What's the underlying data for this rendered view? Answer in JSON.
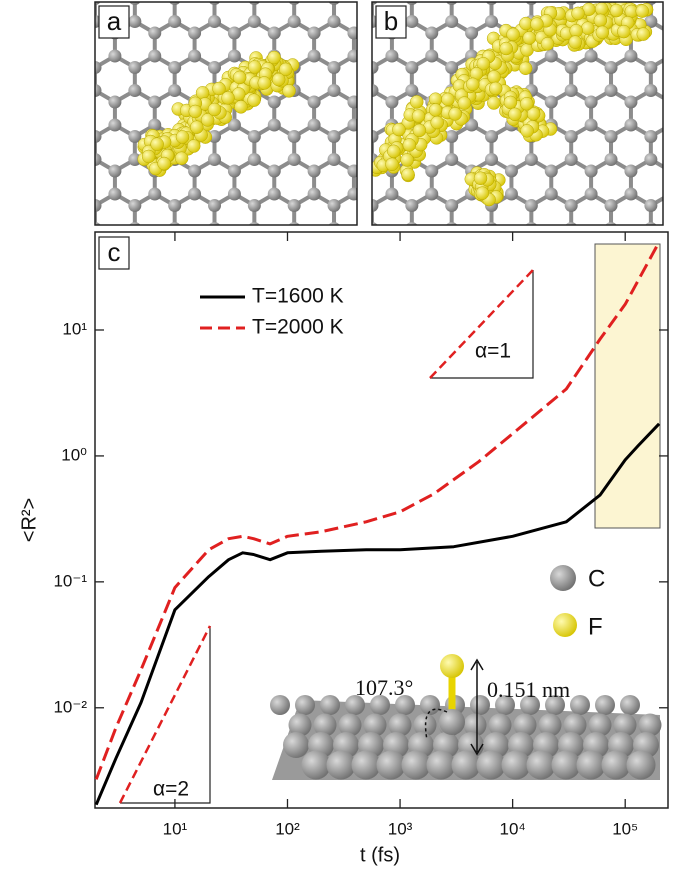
{
  "chart_data": {
    "type": "line",
    "panel_labels": [
      "a",
      "b",
      "c"
    ],
    "xlabel": "t (fs)",
    "ylabel": "<R²>",
    "log_x": true,
    "log_y": true,
    "xlim": [
      1.95,
      240000
    ],
    "ylim": [
      0.0016,
      60
    ],
    "xticks": [
      {
        "value": 10,
        "label": "10¹"
      },
      {
        "value": 100,
        "label": "10²"
      },
      {
        "value": 1000,
        "label": "10³"
      },
      {
        "value": 10000,
        "label": "10⁴"
      },
      {
        "value": 100000,
        "label": "10⁵"
      }
    ],
    "yticks": [
      {
        "value": 0.01,
        "label": "10⁻²"
      },
      {
        "value": 0.1,
        "label": "10⁻¹"
      },
      {
        "value": 1,
        "label": "10⁰"
      },
      {
        "value": 10,
        "label": "10¹"
      }
    ],
    "series": [
      {
        "name": "T=1600 K",
        "color": "#000000",
        "dash": false,
        "x": [
          2,
          3,
          5,
          10,
          20,
          30,
          40,
          50,
          70,
          100,
          200,
          500,
          1000,
          3000,
          10000,
          30000,
          60000,
          100000,
          130000,
          200000
        ],
        "values": [
          0.0017,
          0.004,
          0.011,
          0.06,
          0.11,
          0.15,
          0.17,
          0.165,
          0.15,
          0.17,
          0.175,
          0.18,
          0.18,
          0.19,
          0.23,
          0.3,
          0.49,
          0.93,
          1.2,
          1.8
        ]
      },
      {
        "name": "T=2000 K",
        "color": "#e02020",
        "dash": true,
        "x": [
          2,
          3,
          5,
          10,
          20,
          30,
          40,
          50,
          70,
          100,
          200,
          500,
          1000,
          2000,
          5000,
          10000,
          30000,
          60000,
          100000,
          200000
        ],
        "values": [
          0.0027,
          0.007,
          0.02,
          0.09,
          0.18,
          0.22,
          0.23,
          0.22,
          0.2,
          0.23,
          0.25,
          0.3,
          0.36,
          0.5,
          0.9,
          1.5,
          3.4,
          8.5,
          16,
          50
        ]
      }
    ],
    "annotations": [
      "α=1",
      "α=2"
    ],
    "inset": {
      "legend": [
        "C",
        "F"
      ],
      "angle": "107.3°",
      "bond_length": "0.151 nm"
    }
  }
}
